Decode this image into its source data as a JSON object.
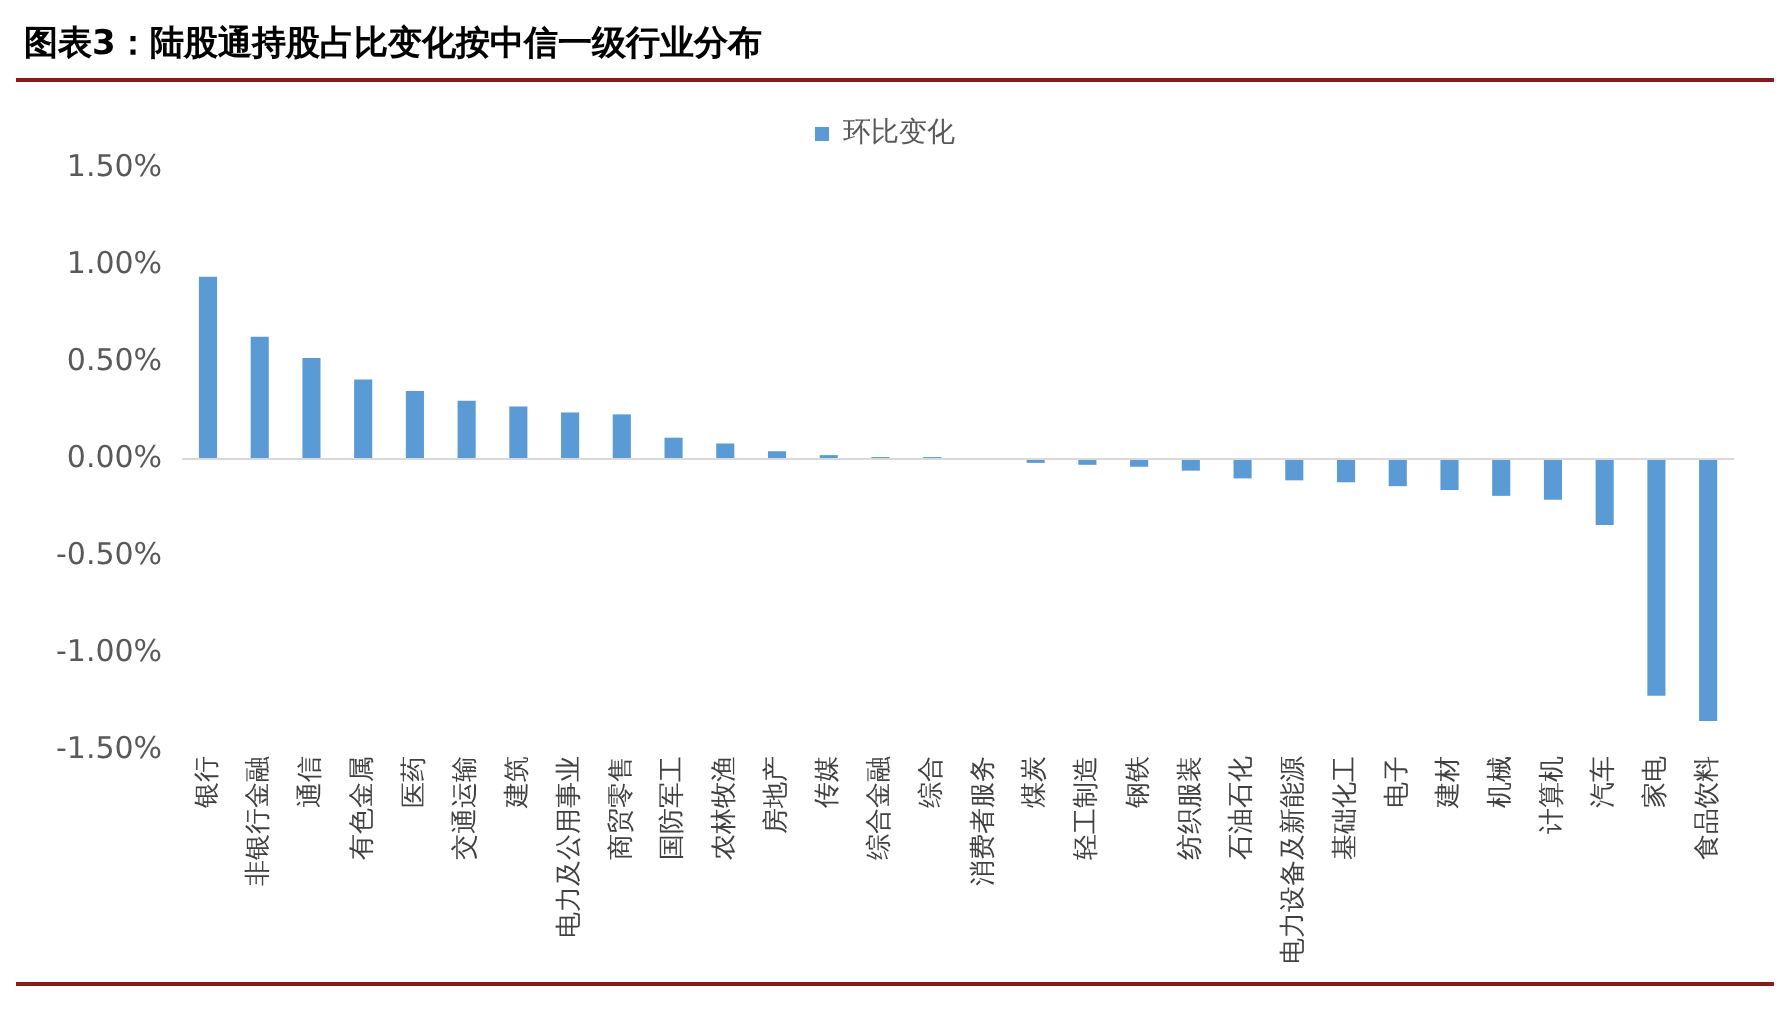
{
  "chart_data": {
    "type": "bar",
    "title": "图表3：陆股通持股占比变化按中信一级行业分布",
    "categories": [
      "银行",
      "非银行金融",
      "通信",
      "有色金属",
      "医药",
      "交通运输",
      "建筑",
      "电力及公用事业",
      "商贸零售",
      "国防军工",
      "农林牧渔",
      "房地产",
      "传媒",
      "综合金融",
      "综合",
      "消费者服务",
      "煤炭",
      "轻工制造",
      "钢铁",
      "纺织服装",
      "石油石化",
      "电力设备及新能源",
      "基础化工",
      "电子",
      "建材",
      "机械",
      "计算机",
      "汽车",
      "家电",
      "食品饮料"
    ],
    "series": [
      {
        "name": "环比变化",
        "color": "#5b9bd5",
        "values": [
          0.94,
          0.63,
          0.52,
          0.41,
          0.35,
          0.3,
          0.27,
          0.24,
          0.23,
          0.11,
          0.08,
          0.04,
          0.02,
          0.01,
          0.01,
          0,
          -0.02,
          -0.03,
          -0.04,
          -0.06,
          -0.1,
          -0.11,
          -0.12,
          -0.14,
          -0.16,
          -0.19,
          -0.21,
          -0.34,
          -1.22,
          -1.35
        ]
      }
    ],
    "ylim": [
      -1.5,
      1.5
    ],
    "yticks": [
      {
        "value": -1.5,
        "label": "-1.50%"
      },
      {
        "value": -1.0,
        "label": "-1.00%"
      },
      {
        "value": -0.5,
        "label": "-0.50%"
      },
      {
        "value": 0,
        "label": "0.00%"
      },
      {
        "value": 0.5,
        "label": "0.50%"
      },
      {
        "value": 1.0,
        "label": "1.00%"
      },
      {
        "value": 1.5,
        "label": "1.50%"
      }
    ],
    "ref_lines": [
      {
        "axis": "y",
        "value": 0,
        "color": "#d9d9d9"
      }
    ],
    "grid": false,
    "legend": "top"
  }
}
